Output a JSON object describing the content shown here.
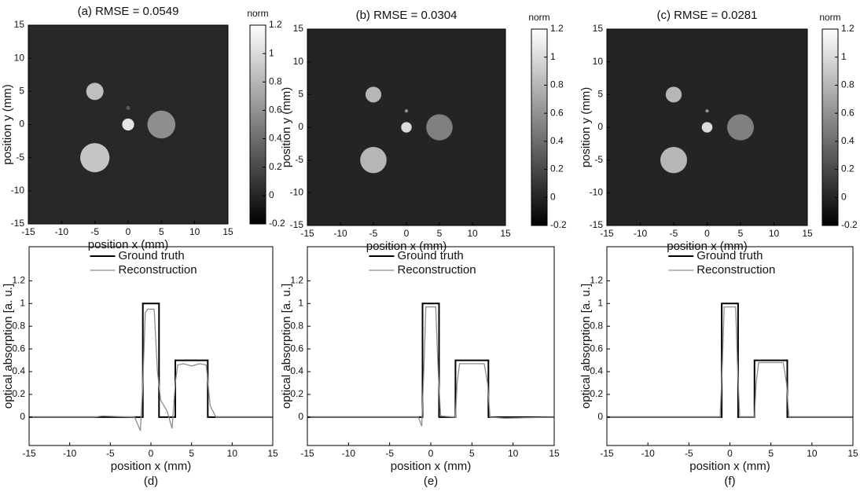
{
  "chart_data": [
    {
      "type": "heatmap",
      "title": "(a) RMSE = 0.0549",
      "colorbar_label": "norm",
      "colormap": "gray",
      "xlabel": "position x (mm)",
      "ylabel": "position y (mm)",
      "xlim": [
        -15,
        15
      ],
      "ylim": [
        -15,
        15
      ],
      "xticks": [
        -15,
        -10,
        -5,
        0,
        5,
        10,
        15
      ],
      "yticks": [
        -15,
        -10,
        -5,
        0,
        5,
        10,
        15
      ],
      "clim": [
        -0.2,
        1.2
      ],
      "cticks": [
        -0.2,
        0,
        0.2,
        0.4,
        0.6,
        0.8,
        1,
        1.2
      ],
      "background": 0.02,
      "circles": {
        "x": [
          -5,
          0,
          5,
          -5,
          0
        ],
        "y": [
          5,
          0,
          0,
          -5,
          2.5
        ],
        "r": [
          1.3,
          0.9,
          2.1,
          2.2,
          0.3
        ],
        "value": [
          0.85,
          1.05,
          0.58,
          0.88,
          0.3
        ]
      }
    },
    {
      "type": "heatmap",
      "title": "(b) RMSE = 0.0304",
      "colorbar_label": "norm",
      "colormap": "gray",
      "xlabel": "position x (mm)",
      "ylabel": "position y (mm)",
      "xlim": [
        -15,
        15
      ],
      "ylim": [
        -15,
        15
      ],
      "xticks": [
        -15,
        -10,
        -5,
        0,
        5,
        10,
        15
      ],
      "yticks": [
        -15,
        -10,
        -5,
        0,
        5,
        10,
        15
      ],
      "clim": [
        -0.2,
        1.2
      ],
      "cticks": [
        -0.2,
        0,
        0.2,
        0.4,
        0.6,
        0.8,
        1,
        1.2
      ],
      "background": 0,
      "circles": {
        "x": [
          -5,
          0,
          5,
          -5,
          0
        ],
        "y": [
          5,
          0,
          0,
          -5,
          2.5
        ],
        "r": [
          1.2,
          0.8,
          2,
          2,
          0.25
        ],
        "value": [
          0.8,
          1,
          0.5,
          0.8,
          0.6
        ]
      }
    },
    {
      "type": "heatmap",
      "title": "(c) RMSE = 0.0281",
      "colorbar_label": "norm",
      "colormap": "gray",
      "xlabel": "position x (mm)",
      "ylabel": "position y (mm)",
      "xlim": [
        -15,
        15
      ],
      "ylim": [
        -15,
        15
      ],
      "xticks": [
        -15,
        -10,
        -5,
        0,
        5,
        10,
        15
      ],
      "yticks": [
        -15,
        -10,
        -5,
        0,
        5,
        10,
        15
      ],
      "clim": [
        -0.2,
        1.2
      ],
      "cticks": [
        -0.2,
        0,
        0.2,
        0.4,
        0.6,
        0.8,
        1,
        1.2
      ],
      "background": 0,
      "circles": {
        "x": [
          -5,
          0,
          5,
          -5,
          0
        ],
        "y": [
          5,
          0,
          0,
          -5,
          2.5
        ],
        "r": [
          1.2,
          0.8,
          2,
          2,
          0.25
        ],
        "value": [
          0.8,
          1,
          0.5,
          0.8,
          0.6
        ]
      }
    },
    {
      "type": "line",
      "caption": "(d)",
      "xlabel": "position x (mm)",
      "ylabel": "optical absorption [a. u.]",
      "legend": "upper left",
      "xlim": [
        -15,
        15
      ],
      "ylim": [
        -0.25,
        1.5
      ],
      "xticks": [
        -15,
        -10,
        -5,
        0,
        5,
        10,
        15
      ],
      "yticks": [
        0,
        0.2,
        0.4,
        0.6,
        0.8,
        1,
        1.2
      ],
      "series": [
        {
          "name": "Ground truth",
          "color": "#000000",
          "x": [
            -15,
            -1,
            -1,
            1,
            1,
            3,
            3,
            7,
            7,
            15
          ],
          "values": [
            0,
            0,
            1,
            1,
            0,
            0,
            0.5,
            0.5,
            0,
            0
          ]
        },
        {
          "name": "Reconstruction",
          "color": "#8c8c8c",
          "x": [
            -15,
            -7,
            -6,
            -2,
            -1.3,
            -1,
            -0.7,
            -0.4,
            0.4,
            0.8,
            1.2,
            2,
            2.6,
            3,
            3.3,
            4,
            5,
            6,
            6.8,
            7.3,
            8,
            15
          ],
          "values": [
            0,
            0,
            0.01,
            0,
            -0.12,
            0.3,
            0.92,
            0.95,
            0.95,
            0.4,
            0.15,
            0.05,
            -0.1,
            0.3,
            0.46,
            0.47,
            0.45,
            0.47,
            0.46,
            0.1,
            0,
            0
          ]
        }
      ]
    },
    {
      "type": "line",
      "caption": "(e)",
      "xlabel": "position x (mm)",
      "ylabel": "optical absorption [a. u.]",
      "legend": "upper left",
      "xlim": [
        -15,
        15
      ],
      "ylim": [
        -0.25,
        1.5
      ],
      "xticks": [
        -15,
        -10,
        -5,
        0,
        5,
        10,
        15
      ],
      "yticks": [
        0,
        0.2,
        0.4,
        0.6,
        0.8,
        1,
        1.2
      ],
      "series": [
        {
          "name": "Ground truth",
          "color": "#000000",
          "x": [
            -15,
            -1,
            -1,
            1,
            1,
            3,
            3,
            7,
            7,
            15
          ],
          "values": [
            0,
            0,
            1,
            1,
            0,
            0,
            0.5,
            0.5,
            0,
            0
          ]
        },
        {
          "name": "Reconstruction",
          "color": "#8c8c8c",
          "x": [
            -15,
            -1.5,
            -1.1,
            -0.8,
            -0.6,
            0.6,
            0.9,
            1.2,
            3,
            3.2,
            3.5,
            6.5,
            6.9,
            7.2,
            9,
            15
          ],
          "values": [
            0,
            0,
            -0.08,
            0.5,
            0.97,
            0.97,
            0.4,
            0.01,
            0,
            0.3,
            0.47,
            0.47,
            0.3,
            0,
            -0.01,
            0
          ]
        }
      ]
    },
    {
      "type": "line",
      "caption": "(f)",
      "xlabel": "position x (mm)",
      "ylabel": "optical absorption [a. u.]",
      "legend": "upper left",
      "xlim": [
        -15,
        15
      ],
      "ylim": [
        -0.25,
        1.5
      ],
      "xticks": [
        -15,
        -10,
        -5,
        0,
        5,
        10,
        15
      ],
      "yticks": [
        0,
        0.2,
        0.4,
        0.6,
        0.8,
        1,
        1.2
      ],
      "series": [
        {
          "name": "Ground truth",
          "color": "#000000",
          "x": [
            -15,
            -1,
            -1,
            1,
            1,
            3,
            3,
            7,
            7,
            15
          ],
          "values": [
            0,
            0,
            1,
            1,
            0,
            0,
            0.5,
            0.5,
            0,
            0
          ]
        },
        {
          "name": "Reconstruction",
          "color": "#8c8c8c",
          "x": [
            -15,
            -1.2,
            -0.9,
            -0.7,
            0.7,
            0.9,
            1.2,
            3,
            3.2,
            3.5,
            6.5,
            6.9,
            7.2,
            15
          ],
          "values": [
            0,
            0,
            0.5,
            0.97,
            0.97,
            0.5,
            0,
            0,
            0.3,
            0.48,
            0.48,
            0.3,
            0,
            0
          ]
        }
      ]
    }
  ]
}
